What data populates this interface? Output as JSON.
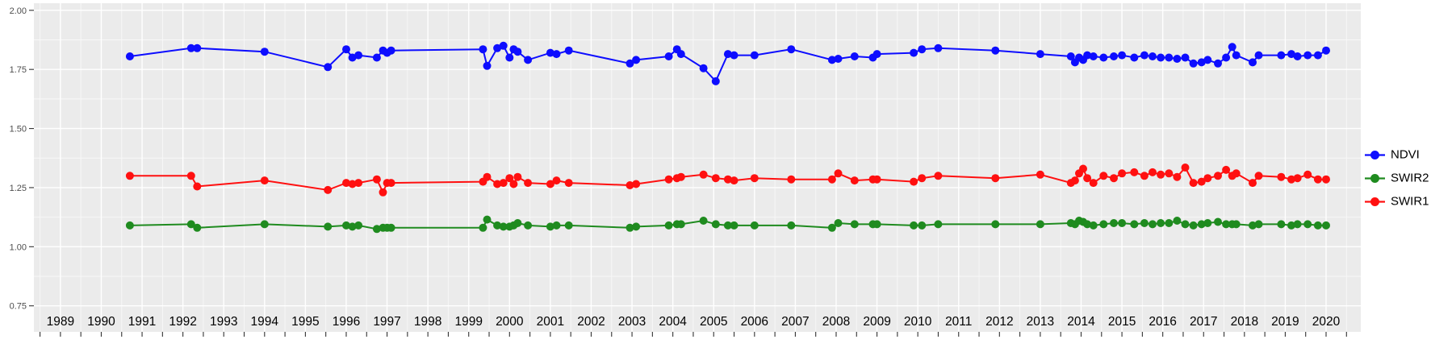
{
  "chart_data": {
    "type": "line",
    "title": "",
    "xlabel": "",
    "ylabel": "",
    "panel_background": "#EBEBEB",
    "grid_color": "#FFFFFF",
    "legend": {
      "position": "right"
    },
    "xlim": [
      1988.35,
      2020.85
    ],
    "ylim": [
      0.64,
      2.03
    ],
    "x_ticks": [
      1989,
      1990,
      1991,
      1992,
      1993,
      1994,
      1995,
      1996,
      1997,
      1998,
      1999,
      2000,
      2001,
      2002,
      2003,
      2004,
      2005,
      2006,
      2007,
      2008,
      2009,
      2010,
      2011,
      2012,
      2013,
      2014,
      2015,
      2016,
      2017,
      2018,
      2019,
      2020
    ],
    "x_tick_labels": [
      "1989",
      "1990",
      "1991",
      "1992",
      "1993",
      "1994",
      "1995",
      "1996",
      "1997",
      "1998",
      "1999",
      "2000",
      "2001",
      "2002",
      "2003",
      "2004",
      "2005",
      "2006",
      "2007",
      "2008",
      "2009",
      "2010",
      "2011",
      "2012",
      "2013",
      "2014",
      "2015",
      "2016",
      "2017",
      "2018",
      "2019",
      "2020"
    ],
    "y_ticks": [
      2.0,
      1.75,
      1.5,
      1.25,
      1.0,
      0.75
    ],
    "y_tick_labels": [
      "2.00",
      "1.75",
      "1.50",
      "1.25",
      "1.00",
      "0.75"
    ],
    "y_minor_ticks": [
      1.875,
      1.625,
      1.375,
      1.125,
      0.875
    ],
    "x": [
      1990.7,
      1992.2,
      1992.35,
      1994.0,
      1995.55,
      1996.0,
      1996.15,
      1996.3,
      1996.75,
      1996.9,
      1997.0,
      1997.1,
      1999.35,
      1999.45,
      1999.7,
      1999.85,
      2000.0,
      2000.1,
      2000.2,
      2000.45,
      2001.0,
      2001.15,
      2001.45,
      2002.95,
      2003.1,
      2003.9,
      2004.1,
      2004.2,
      2004.75,
      2005.05,
      2005.35,
      2005.5,
      2006.0,
      2006.9,
      2007.9,
      2008.05,
      2008.45,
      2008.9,
      2009.0,
      2009.9,
      2010.1,
      2010.5,
      2011.9,
      2013.0,
      2013.75,
      2013.85,
      2013.95,
      2014.05,
      2014.15,
      2014.3,
      2014.55,
      2014.8,
      2015.0,
      2015.3,
      2015.55,
      2015.75,
      2015.95,
      2016.15,
      2016.35,
      2016.55,
      2016.75,
      2016.95,
      2017.1,
      2017.35,
      2017.55,
      2017.7,
      2017.8,
      2018.2,
      2018.35,
      2018.9,
      2019.15,
      2019.3,
      2019.55,
      2019.8,
      2020.0
    ],
    "series": [
      {
        "name": "NDVI",
        "color": "#0D0DFF",
        "values": [
          1.805,
          1.84,
          1.84,
          1.825,
          1.76,
          1.835,
          1.8,
          1.81,
          1.8,
          1.83,
          1.82,
          1.83,
          1.835,
          1.765,
          1.84,
          1.85,
          1.8,
          1.835,
          1.825,
          1.79,
          1.82,
          1.815,
          1.83,
          1.775,
          1.79,
          1.805,
          1.835,
          1.815,
          1.755,
          1.7,
          1.815,
          1.81,
          1.81,
          1.835,
          1.79,
          1.795,
          1.805,
          1.8,
          1.815,
          1.82,
          1.835,
          1.84,
          1.83,
          1.815,
          1.805,
          1.78,
          1.8,
          1.79,
          1.81,
          1.805,
          1.8,
          1.805,
          1.81,
          1.8,
          1.81,
          1.805,
          1.8,
          1.8,
          1.795,
          1.8,
          1.775,
          1.78,
          1.79,
          1.775,
          1.8,
          1.845,
          1.81,
          1.78,
          1.81,
          1.81,
          1.815,
          1.805,
          1.81,
          1.81,
          1.83
        ]
      },
      {
        "name": "SWIR2",
        "color": "#1F8B1F",
        "values": [
          1.09,
          1.095,
          1.08,
          1.095,
          1.085,
          1.09,
          1.085,
          1.09,
          1.075,
          1.08,
          1.08,
          1.08,
          1.08,
          1.115,
          1.09,
          1.085,
          1.085,
          1.09,
          1.1,
          1.09,
          1.085,
          1.09,
          1.09,
          1.08,
          1.085,
          1.09,
          1.095,
          1.095,
          1.11,
          1.095,
          1.09,
          1.09,
          1.09,
          1.09,
          1.08,
          1.1,
          1.095,
          1.095,
          1.095,
          1.09,
          1.09,
          1.095,
          1.095,
          1.095,
          1.1,
          1.095,
          1.11,
          1.105,
          1.095,
          1.09,
          1.095,
          1.1,
          1.1,
          1.095,
          1.1,
          1.095,
          1.1,
          1.1,
          1.11,
          1.095,
          1.09,
          1.095,
          1.1,
          1.105,
          1.095,
          1.095,
          1.095,
          1.09,
          1.095,
          1.095,
          1.09,
          1.095,
          1.095,
          1.09,
          1.09
        ]
      },
      {
        "name": "SWIR1",
        "color": "#FF1010",
        "values": [
          1.3,
          1.3,
          1.255,
          1.28,
          1.24,
          1.27,
          1.265,
          1.27,
          1.285,
          1.23,
          1.27,
          1.27,
          1.275,
          1.295,
          1.265,
          1.27,
          1.29,
          1.265,
          1.295,
          1.27,
          1.265,
          1.28,
          1.27,
          1.26,
          1.265,
          1.285,
          1.29,
          1.295,
          1.305,
          1.29,
          1.285,
          1.28,
          1.29,
          1.285,
          1.285,
          1.31,
          1.28,
          1.285,
          1.285,
          1.275,
          1.29,
          1.3,
          1.29,
          1.305,
          1.27,
          1.28,
          1.31,
          1.33,
          1.29,
          1.27,
          1.3,
          1.29,
          1.31,
          1.315,
          1.3,
          1.315,
          1.305,
          1.31,
          1.295,
          1.335,
          1.27,
          1.275,
          1.29,
          1.3,
          1.325,
          1.3,
          1.31,
          1.27,
          1.3,
          1.295,
          1.285,
          1.29,
          1.305,
          1.285,
          1.285
        ]
      }
    ]
  }
}
